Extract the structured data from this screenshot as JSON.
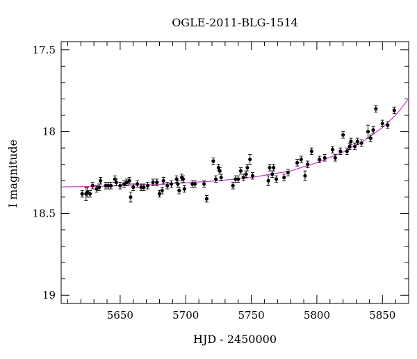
{
  "chart_data": {
    "type": "scatter",
    "title": "OGLE-2011-BLG-1514",
    "xlabel": "HJD - 2450000",
    "ylabel": "I magnitude",
    "xlim": [
      5605,
      5870
    ],
    "ylim": [
      19.05,
      17.45
    ],
    "y_inverted": true,
    "x_ticks": [
      "5650",
      "5700",
      "5750",
      "5800",
      "5850"
    ],
    "y_ticks": [
      "17.5",
      "18",
      "18.5",
      "19"
    ],
    "x_tick_values": [
      5650,
      5700,
      5750,
      5800,
      5850
    ],
    "y_tick_values": [
      17.5,
      18,
      18.5,
      19
    ],
    "series": [
      {
        "marker": "point-with-errorbar",
        "color": "#000000",
        "points": [
          [
            5621,
            18.38,
            0.02
          ],
          [
            5624,
            18.38,
            0.04
          ],
          [
            5625,
            18.37,
            0.03
          ],
          [
            5627,
            18.38,
            0.02
          ],
          [
            5629,
            18.33,
            0.02
          ],
          [
            5632,
            18.35,
            0.02
          ],
          [
            5634,
            18.34,
            0.02
          ],
          [
            5635,
            18.3,
            0.02
          ],
          [
            5639,
            18.33,
            0.02
          ],
          [
            5641,
            18.33,
            0.02
          ],
          [
            5643,
            18.33,
            0.02
          ],
          [
            5646,
            18.29,
            0.02
          ],
          [
            5647,
            18.31,
            0.02
          ],
          [
            5650,
            18.33,
            0.02
          ],
          [
            5653,
            18.32,
            0.02
          ],
          [
            5655,
            18.31,
            0.02
          ],
          [
            5657,
            18.3,
            0.02
          ],
          [
            5658,
            18.4,
            0.03
          ],
          [
            5660,
            18.34,
            0.02
          ],
          [
            5663,
            18.32,
            0.02
          ],
          [
            5666,
            18.34,
            0.02
          ],
          [
            5668,
            18.34,
            0.02
          ],
          [
            5671,
            18.33,
            0.02
          ],
          [
            5675,
            18.31,
            0.02
          ],
          [
            5678,
            18.31,
            0.02
          ],
          [
            5680,
            18.38,
            0.02
          ],
          [
            5682,
            18.36,
            0.02
          ],
          [
            5683,
            18.3,
            0.02
          ],
          [
            5686,
            18.33,
            0.02
          ],
          [
            5689,
            18.32,
            0.02
          ],
          [
            5693,
            18.29,
            0.02
          ],
          [
            5694,
            18.32,
            0.02
          ],
          [
            5695,
            18.36,
            0.02
          ],
          [
            5697,
            18.28,
            0.02
          ],
          [
            5698,
            18.29,
            0.02
          ],
          [
            5699,
            18.35,
            0.02
          ],
          [
            5705,
            18.32,
            0.02
          ],
          [
            5707,
            18.32,
            0.02
          ],
          [
            5714,
            18.32,
            0.02
          ],
          [
            5716,
            18.41,
            0.02
          ],
          [
            5721,
            18.18,
            0.02
          ],
          [
            5723,
            18.29,
            0.02
          ],
          [
            5725,
            18.22,
            0.02
          ],
          [
            5726,
            18.24,
            0.02
          ],
          [
            5727,
            18.28,
            0.02
          ],
          [
            5736,
            18.33,
            0.02
          ],
          [
            5738,
            18.29,
            0.02
          ],
          [
            5740,
            18.29,
            0.02
          ],
          [
            5742,
            18.24,
            0.02
          ],
          [
            5744,
            18.28,
            0.02
          ],
          [
            5746,
            18.26,
            0.02
          ],
          [
            5747,
            18.22,
            0.02
          ],
          [
            5749,
            18.17,
            0.03
          ],
          [
            5751,
            18.27,
            0.02
          ],
          [
            5763,
            18.3,
            0.03
          ],
          [
            5764,
            18.22,
            0.02
          ],
          [
            5766,
            18.26,
            0.02
          ],
          [
            5767,
            18.22,
            0.02
          ],
          [
            5769,
            18.29,
            0.02
          ],
          [
            5775,
            18.28,
            0.02
          ],
          [
            5778,
            18.25,
            0.02
          ],
          [
            5785,
            18.19,
            0.02
          ],
          [
            5788,
            18.17,
            0.02
          ],
          [
            5791,
            18.27,
            0.03
          ],
          [
            5793,
            18.2,
            0.02
          ],
          [
            5796,
            18.12,
            0.02
          ],
          [
            5802,
            18.17,
            0.02
          ],
          [
            5806,
            18.16,
            0.02
          ],
          [
            5812,
            18.11,
            0.02
          ],
          [
            5814,
            18.16,
            0.02
          ],
          [
            5818,
            18.12,
            0.02
          ],
          [
            5820,
            18.02,
            0.02
          ],
          [
            5823,
            18.12,
            0.02
          ],
          [
            5825,
            18.09,
            0.02
          ],
          [
            5826,
            18.06,
            0.02
          ],
          [
            5829,
            18.09,
            0.02
          ],
          [
            5831,
            18.06,
            0.02
          ],
          [
            5834,
            18.07,
            0.02
          ],
          [
            5839,
            18.0,
            0.04
          ],
          [
            5841,
            18.04,
            0.02
          ],
          [
            5843,
            17.99,
            0.02
          ],
          [
            5845,
            17.86,
            0.02
          ],
          [
            5850,
            17.95,
            0.02
          ],
          [
            5854,
            17.96,
            0.02
          ],
          [
            5859,
            17.87,
            0.02
          ]
        ]
      },
      {
        "type": "line",
        "color": "#cc44cc",
        "points": [
          [
            5605,
            18.338
          ],
          [
            5640,
            18.333
          ],
          [
            5680,
            18.322
          ],
          [
            5720,
            18.303
          ],
          [
            5750,
            18.28
          ],
          [
            5780,
            18.24
          ],
          [
            5800,
            18.19
          ],
          [
            5820,
            18.125
          ],
          [
            5835,
            18.06
          ],
          [
            5850,
            17.975
          ],
          [
            5860,
            17.9
          ],
          [
            5870,
            17.8
          ]
        ]
      }
    ]
  }
}
